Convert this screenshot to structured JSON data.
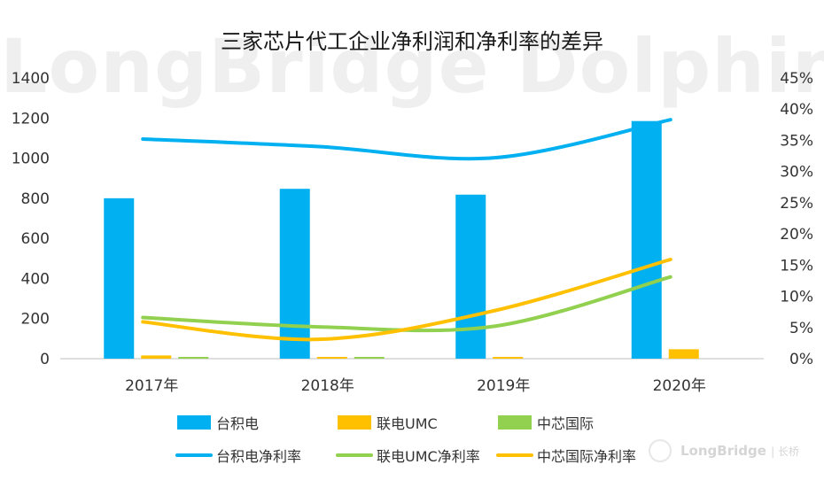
{
  "chart_data": {
    "type": "bar",
    "title": "三家芯片代工企业净利润和净利率的差异",
    "categories": [
      "2017年",
      "2018年",
      "2019年",
      "2020年"
    ],
    "y_left": {
      "ylim": [
        0,
        1400
      ],
      "ticks": [
        "0",
        "200",
        "400",
        "600",
        "800",
        "1000",
        "1200",
        "1400"
      ]
    },
    "y_right": {
      "ylim": [
        0,
        45
      ],
      "ticks": [
        "0%",
        "5%",
        "10%",
        "15%",
        "20%",
        "25%",
        "30%",
        "35%",
        "40%",
        "45%"
      ]
    },
    "bar_series": [
      {
        "name": "台积电",
        "color": "#00B0F0",
        "values": [
          800,
          847,
          818,
          1185
        ]
      },
      {
        "name": "联电UMC",
        "color": "#FFC000",
        "values": [
          16,
          8,
          9,
          47
        ]
      },
      {
        "name": "中芯国际",
        "color": "#92D050",
        "values": [
          8,
          1,
          0,
          0
        ]
      }
    ],
    "line_series": [
      {
        "name": "台积电净利率",
        "color": "#00B0F0",
        "axis": "right",
        "values": [
          35.2,
          34.0,
          32.2,
          38.3
        ]
      },
      {
        "name": "联电UMC净利率",
        "color": "#92D050",
        "axis": "right",
        "values": [
          6.6,
          5.1,
          5.2,
          13.1
        ]
      },
      {
        "name": "中芯国际净利率",
        "color": "#FFC000",
        "axis": "right",
        "values": [
          5.9,
          3.1,
          7.7,
          15.9
        ]
      }
    ],
    "legend_position": "bottom",
    "grid": false
  },
  "watermark": "LongBridge Dolphin | 长桥海豚投研",
  "brand": {
    "name": "LongBridge",
    "suffix": "长桥"
  }
}
